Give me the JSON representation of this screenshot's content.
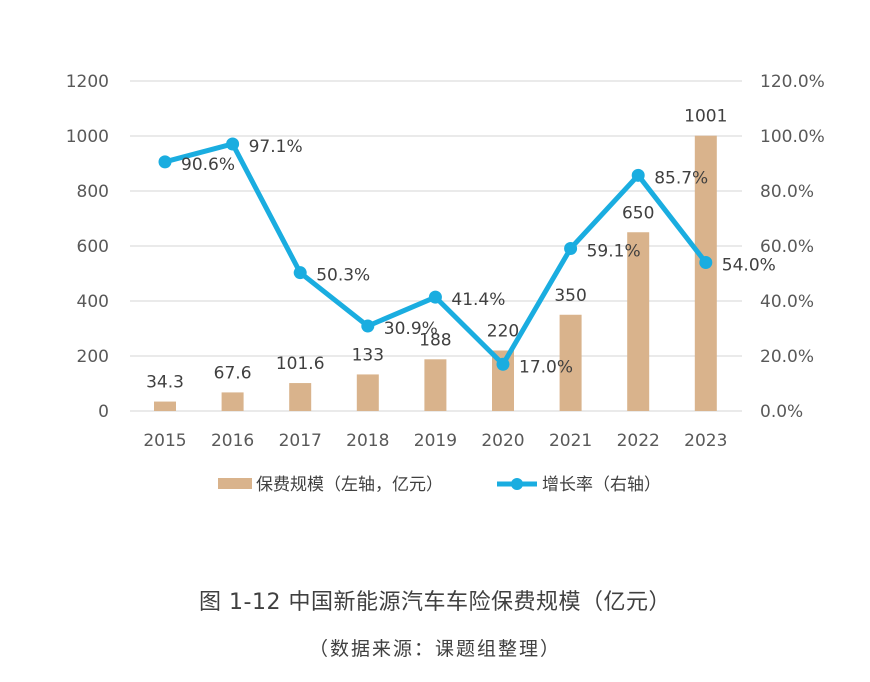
{
  "chart_data": {
    "type": "bar+line",
    "categories": [
      "2015",
      "2016",
      "2017",
      "2018",
      "2019",
      "2020",
      "2021",
      "2022",
      "2023"
    ],
    "series": [
      {
        "name": "保费规模（左轴，亿元）",
        "type": "bar",
        "axis": "left",
        "color": "#D9B38C",
        "values": [
          34.3,
          67.6,
          101.6,
          133,
          188,
          220,
          350,
          650,
          1001
        ],
        "labels": [
          "34.3",
          "67.6",
          "101.6",
          "133",
          "188",
          "220",
          "350",
          "650",
          "1001"
        ]
      },
      {
        "name": "增长率（右轴）",
        "type": "line",
        "axis": "right",
        "color": "#1AADE0",
        "values": [
          90.6,
          97.1,
          50.3,
          30.9,
          41.4,
          17.0,
          59.1,
          85.7,
          54.0
        ],
        "labels": [
          "90.6%",
          "97.1%",
          "50.3%",
          "30.9%",
          "41.4%",
          "17.0%",
          "59.1%",
          "85.7%",
          "54.0%"
        ]
      }
    ],
    "left_axis": {
      "min": 0,
      "max": 1200,
      "ticks": [
        "0",
        "200",
        "400",
        "600",
        "800",
        "1000",
        "1200"
      ]
    },
    "right_axis": {
      "min": 0,
      "max": 120,
      "ticks": [
        "0.0%",
        "20.0%",
        "40.0%",
        "60.0%",
        "80.0%",
        "100.0%",
        "120.0%"
      ]
    },
    "grid": true,
    "legend_position": "bottom",
    "legend": {
      "bar_label": "保费规模（左轴，亿元）",
      "line_label": "增长率（右轴）"
    },
    "title": "图 1-12 中国新能源汽车车险保费规模（亿元）",
    "source": "（数据来源：课题组整理）"
  },
  "colors": {
    "bar": "#D9B38C",
    "line": "#1AADE0",
    "grid": "#E3E3E3"
  }
}
